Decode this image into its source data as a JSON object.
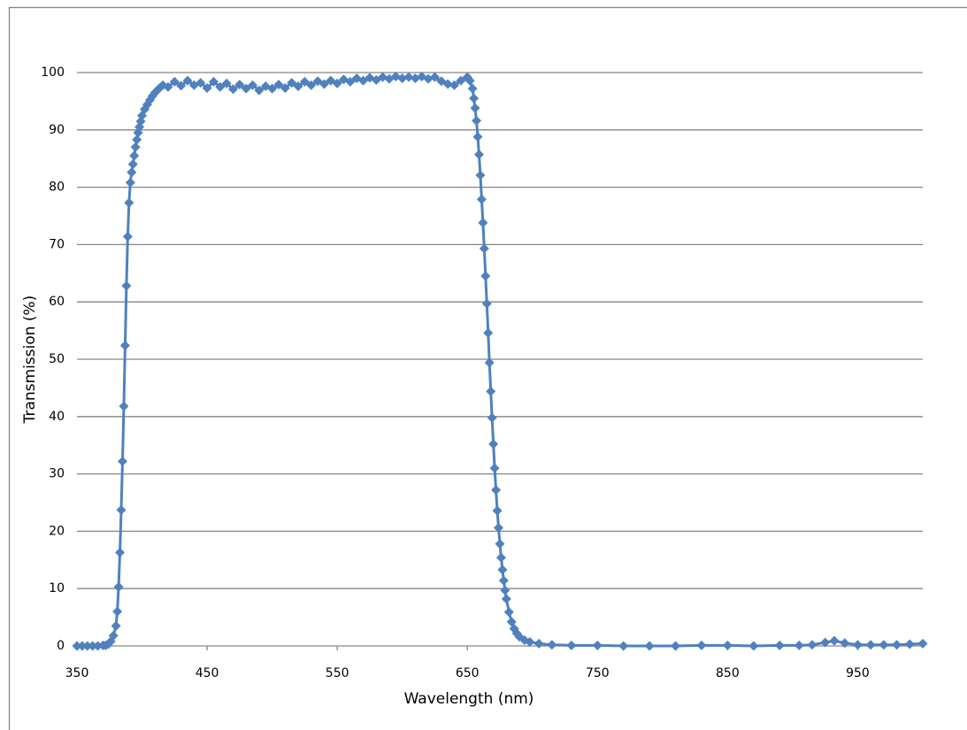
{
  "chart_data": {
    "type": "line",
    "x_label": "Wavelength (nm)",
    "y_label": "Transmission (%)",
    "color": "#4f81bd",
    "markers": true,
    "grid": true,
    "xlim": [
      350,
      1000
    ],
    "ylim": [
      0,
      100
    ],
    "xticks": [
      350,
      450,
      550,
      650,
      750,
      850,
      950
    ],
    "yticks": [
      0,
      10,
      20,
      30,
      40,
      50,
      60,
      70,
      80,
      90,
      100
    ],
    "x": [
      350,
      354,
      358,
      362,
      366,
      370,
      372,
      374,
      376,
      378,
      380,
      381,
      382,
      383,
      384,
      385,
      386,
      387,
      388,
      389,
      390,
      391,
      392,
      393,
      394,
      395,
      396,
      397,
      398,
      399,
      400,
      402,
      404,
      406,
      408,
      410,
      413,
      416,
      420,
      425,
      430,
      435,
      440,
      445,
      450,
      455,
      460,
      465,
      470,
      475,
      480,
      485,
      490,
      495,
      500,
      505,
      510,
      515,
      520,
      525,
      530,
      535,
      540,
      545,
      550,
      555,
      560,
      565,
      570,
      575,
      580,
      585,
      590,
      595,
      600,
      605,
      610,
      615,
      620,
      625,
      630,
      635,
      640,
      645,
      650,
      652,
      654,
      655,
      656,
      657,
      658,
      659,
      660,
      661,
      662,
      663,
      664,
      665,
      666,
      667,
      668,
      669,
      670,
      671,
      672,
      673,
      674,
      675,
      676,
      677,
      678,
      679,
      680,
      682,
      684,
      686,
      688,
      690,
      694,
      698,
      705,
      715,
      730,
      750,
      770,
      790,
      810,
      830,
      850,
      870,
      890,
      905,
      915,
      925,
      932,
      940,
      950,
      960,
      970,
      980,
      990,
      1000
    ],
    "values": [
      0,
      0,
      0,
      0,
      0,
      0.1,
      0.1,
      0.3,
      0.8,
      1.8,
      3.5,
      6,
      10.3,
      16.3,
      23.7,
      32.2,
      41.8,
      52.4,
      62.8,
      71.4,
      77.3,
      80.8,
      82.6,
      84,
      85.5,
      87,
      88.3,
      89.5,
      90.5,
      91.5,
      92.5,
      93.6,
      94.4,
      95.2,
      95.9,
      96.5,
      97.2,
      97.8,
      97.5,
      98.4,
      97.7,
      98.6,
      97.8,
      98.2,
      97.3,
      98.4,
      97.5,
      98.1,
      97.1,
      97.9,
      97.2,
      97.8,
      96.9,
      97.6,
      97.2,
      97.9,
      97.3,
      98.2,
      97.6,
      98.4,
      97.8,
      98.5,
      98,
      98.6,
      98.1,
      98.8,
      98.4,
      99,
      98.6,
      99.1,
      98.7,
      99.2,
      98.9,
      99.3,
      99,
      99.2,
      99,
      99.3,
      98.9,
      99.2,
      98.5,
      98,
      97.8,
      98.6,
      99.2,
      98.6,
      97.2,
      95.5,
      93.8,
      91.6,
      88.8,
      85.7,
      82.1,
      77.9,
      73.8,
      69.3,
      64.5,
      59.7,
      54.6,
      49.4,
      44.4,
      39.8,
      35.2,
      31,
      27.2,
      23.6,
      20.6,
      17.8,
      15.4,
      13.3,
      11.4,
      9.7,
      8.2,
      5.9,
      4.2,
      3,
      2.2,
      1.6,
      1,
      0.7,
      0.4,
      0.2,
      0.1,
      0.1,
      0,
      0,
      0,
      0.1,
      0.1,
      0,
      0.1,
      0.1,
      0.2,
      0.6,
      0.9,
      0.5,
      0.2,
      0.2,
      0.2,
      0.2,
      0.3,
      0.4
    ]
  }
}
